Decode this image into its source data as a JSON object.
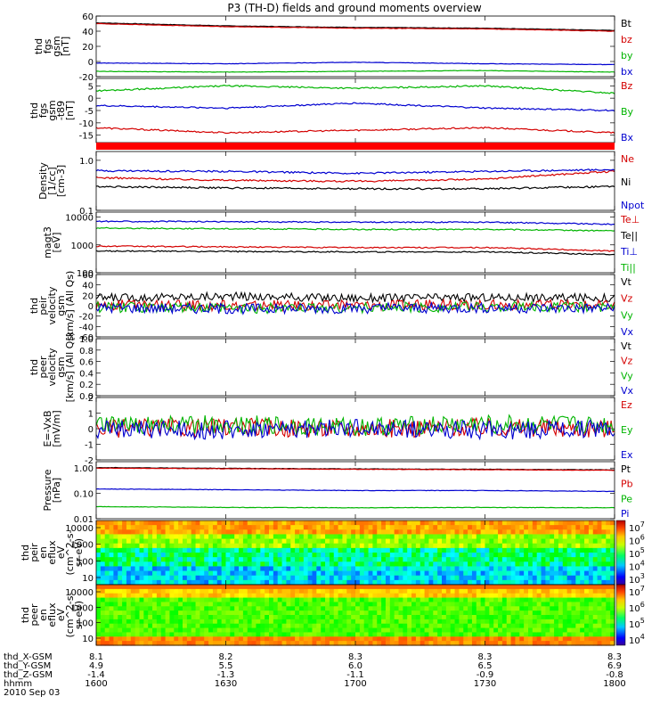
{
  "title": "P3 (TH-D) fields and ground moments overview",
  "chart_data": [
    {
      "type": "line",
      "ylabel": [
        "thd",
        "fgs",
        "gsm",
        "[nT]"
      ],
      "yticks": [
        "60",
        "40",
        "20",
        "0",
        "-20"
      ],
      "ylim": [
        -20,
        60
      ],
      "series": [
        {
          "name": "Bt",
          "color": "#000000",
          "x": [
            1600,
            1630,
            1700,
            1730,
            1800
          ],
          "y": [
            51,
            47,
            45,
            44,
            41
          ]
        },
        {
          "name": "bz",
          "color": "#d40000",
          "x": [
            1600,
            1630,
            1700,
            1730,
            1800
          ],
          "y": [
            50,
            46,
            44,
            43,
            40
          ]
        },
        {
          "name": "by",
          "color": "#00b400",
          "x": [
            1600,
            1630,
            1700,
            1730,
            1800
          ],
          "y": [
            -13,
            -14,
            -13,
            -12,
            -14
          ]
        },
        {
          "name": "bx",
          "color": "#0000d0",
          "x": [
            1600,
            1630,
            1700,
            1730,
            1800
          ],
          "y": [
            -2,
            -3,
            -1,
            -3,
            -4
          ]
        }
      ]
    },
    {
      "type": "line",
      "ylabel": [
        "thd",
        "fgs",
        "gsm",
        "-t89",
        "[nT]"
      ],
      "yticks": [
        "5",
        "0",
        "-5",
        "-10",
        "-15"
      ],
      "ylim": [
        -18,
        8
      ],
      "series": [
        {
          "name": "Bz",
          "color": "#d40000",
          "x": [
            1600,
            1630,
            1700,
            1730,
            1800
          ],
          "y": [
            -12,
            -14,
            -13,
            -12,
            -14
          ]
        },
        {
          "name": "By",
          "color": "#00b400",
          "x": [
            1600,
            1630,
            1700,
            1730,
            1800
          ],
          "y": [
            3,
            5,
            4,
            5,
            2
          ]
        },
        {
          "name": "Bx",
          "color": "#0000d0",
          "x": [
            1600,
            1630,
            1700,
            1730,
            1800
          ],
          "y": [
            -3,
            -4,
            -2,
            -4,
            -5
          ]
        }
      ]
    },
    {
      "type": "line",
      "ylabel": [
        "Density",
        "[1/cc]",
        "[cm-3]"
      ],
      "yticks": [
        "1.0",
        "0.1"
      ],
      "ylim": [
        0.1,
        1.5
      ],
      "yscale": "log",
      "series": [
        {
          "name": "Ne",
          "color": "#d40000",
          "x": [
            1600,
            1630,
            1700,
            1730,
            1800
          ],
          "y": [
            0.45,
            0.4,
            0.38,
            0.42,
            0.6
          ]
        },
        {
          "name": "Ni",
          "color": "#000000",
          "x": [
            1600,
            1630,
            1700,
            1730,
            1800
          ],
          "y": [
            0.3,
            0.28,
            0.27,
            0.27,
            0.3
          ]
        },
        {
          "name": "Npot",
          "color": "#0000d0",
          "x": [
            1600,
            1630,
            1700,
            1730,
            1800
          ],
          "y": [
            0.62,
            0.6,
            0.55,
            0.6,
            0.65
          ]
        }
      ]
    },
    {
      "type": "line",
      "ylabel": [
        "magt3",
        "[eV]"
      ],
      "yticks": [
        "10000",
        "1000",
        "100"
      ],
      "ylim": [
        100,
        15000
      ],
      "yscale": "log",
      "series": [
        {
          "name": "Te⊥",
          "color": "#d40000",
          "x": [
            1600,
            1630,
            1700,
            1730,
            1800
          ],
          "y": [
            900,
            850,
            800,
            800,
            600
          ]
        },
        {
          "name": "Te||",
          "color": "#000000",
          "x": [
            1600,
            1630,
            1700,
            1730,
            1800
          ],
          "y": [
            600,
            580,
            560,
            560,
            450
          ]
        },
        {
          "name": "Ti⊥",
          "color": "#0000d0",
          "x": [
            1600,
            1630,
            1700,
            1730,
            1800
          ],
          "y": [
            7000,
            6800,
            6500,
            6500,
            5500
          ]
        },
        {
          "name": "Ti||",
          "color": "#00b400",
          "x": [
            1600,
            1630,
            1700,
            1730,
            1800
          ],
          "y": [
            4000,
            3800,
            3600,
            3600,
            3200
          ]
        }
      ]
    },
    {
      "type": "line",
      "ylabel": [
        "thd",
        "peir",
        "velocity",
        "gsm",
        "[km/s] (All Qs)"
      ],
      "yticks": [
        "60",
        "40",
        "20",
        "0",
        "-20",
        "-40",
        "-60"
      ],
      "ylim": [
        -60,
        60
      ],
      "series": [
        {
          "name": "Vt",
          "color": "#000000",
          "x": [
            1600,
            1630,
            1700,
            1730,
            1800
          ],
          "y": [
            15,
            18,
            15,
            16,
            15
          ]
        },
        {
          "name": "Vz",
          "color": "#d40000",
          "x": [
            1600,
            1630,
            1700,
            1730,
            1800
          ],
          "y": [
            2,
            0,
            1,
            2,
            1
          ]
        },
        {
          "name": "Vy",
          "color": "#00b400",
          "x": [
            1600,
            1630,
            1700,
            1730,
            1800
          ],
          "y": [
            -3,
            -5,
            -4,
            -2,
            -3
          ]
        },
        {
          "name": "Vx",
          "color": "#0000d0",
          "x": [
            1600,
            1630,
            1700,
            1730,
            1800
          ],
          "y": [
            -4,
            -6,
            -5,
            -4,
            -5
          ]
        }
      ]
    },
    {
      "type": "line",
      "ylabel": [
        "thd",
        "peer",
        "velocity",
        "gsm",
        "[km/s] (All Qs)"
      ],
      "yticks": [
        "1.0",
        "0.8",
        "0.6",
        "0.4",
        "0.2",
        "0.0"
      ],
      "ylim": [
        0,
        1
      ],
      "series": [
        {
          "name": "Vt",
          "color": "#000000",
          "x": [],
          "y": []
        },
        {
          "name": "Vz",
          "color": "#d40000",
          "x": [],
          "y": []
        },
        {
          "name": "Vy",
          "color": "#00b400",
          "x": [],
          "y": []
        },
        {
          "name": "Vx",
          "color": "#0000d0",
          "x": [],
          "y": []
        }
      ]
    },
    {
      "type": "line",
      "ylabel": [
        "E=-VxB",
        "[mV/m]"
      ],
      "yticks": [
        "2",
        "1",
        "0",
        "-1",
        "-2"
      ],
      "ylim": [
        -2,
        2
      ],
      "series": [
        {
          "name": "Ez",
          "color": "#d40000",
          "x": [
            1600,
            1630,
            1700,
            1730,
            1800
          ],
          "y": [
            0,
            0.1,
            0,
            0.1,
            0
          ]
        },
        {
          "name": "Ey",
          "color": "#00b400",
          "x": [
            1600,
            1630,
            1700,
            1730,
            1800
          ],
          "y": [
            0.2,
            0.3,
            0.1,
            0.3,
            0.2
          ]
        },
        {
          "name": "Ex",
          "color": "#0000d0",
          "x": [
            1600,
            1630,
            1700,
            1730,
            1800
          ],
          "y": [
            0,
            -0.1,
            0,
            -0.1,
            0
          ]
        }
      ]
    },
    {
      "type": "line",
      "ylabel": [
        "Pressure",
        "[nPa]"
      ],
      "yticks": [
        "1.00",
        "0.10",
        "0.01"
      ],
      "ylim": [
        0.01,
        1.8
      ],
      "yscale": "log",
      "series": [
        {
          "name": "Pt",
          "color": "#000000",
          "x": [
            1600,
            1630,
            1700,
            1730,
            1800
          ],
          "y": [
            1.05,
            0.98,
            0.93,
            0.9,
            0.85
          ]
        },
        {
          "name": "Pb",
          "color": "#d40000",
          "x": [
            1600,
            1630,
            1700,
            1730,
            1800
          ],
          "y": [
            1.0,
            0.95,
            0.9,
            0.87,
            0.82
          ]
        },
        {
          "name": "Pe",
          "color": "#00b400",
          "x": [
            1600,
            1630,
            1700,
            1730,
            1800
          ],
          "y": [
            0.03,
            0.028,
            0.027,
            0.028,
            0.027
          ]
        },
        {
          "name": "Pi",
          "color": "#0000d0",
          "x": [
            1600,
            1630,
            1700,
            1730,
            1800
          ],
          "y": [
            0.15,
            0.14,
            0.13,
            0.13,
            0.12
          ]
        }
      ]
    },
    {
      "type": "heatmap",
      "ylabel": [
        "thd",
        "peir",
        "en",
        "eflux",
        "eV",
        "(cm^2-s-",
        "sr-eV)"
      ],
      "yticks": [
        "10000",
        "1000",
        "100",
        "10"
      ],
      "yscale": "log",
      "colorbar_ticks": [
        "10^7",
        "10^6",
        "10^5",
        "10^4",
        "10^3"
      ]
    },
    {
      "type": "heatmap",
      "ylabel": [
        "thd",
        "peer",
        "en",
        "eflux",
        "eV",
        "(cm^2-s-",
        "sr-eV)"
      ],
      "yticks": [
        "10000",
        "1000",
        "100",
        "10"
      ],
      "yscale": "log",
      "colorbar_ticks": [
        "10^7",
        "10^6",
        "10^5",
        "10^4"
      ]
    }
  ],
  "x_axis": {
    "ticks": [
      "1600",
      "1630",
      "1700",
      "1730",
      "1800"
    ],
    "rows": [
      {
        "label": "thd_X-GSM",
        "values": [
          "8.1",
          "8.2",
          "8.3",
          "8.3",
          "8.3"
        ]
      },
      {
        "label": "thd_Y-GSM",
        "values": [
          "4.9",
          "5.5",
          "6.0",
          "6.5",
          "6.9"
        ]
      },
      {
        "label": "thd_Z-GSM",
        "values": [
          "-1.4",
          "-1.3",
          "-1.1",
          "-0.9",
          "-0.8"
        ]
      },
      {
        "label": "hhmm",
        "values": [
          "1600",
          "1630",
          "1700",
          "1730",
          "1800"
        ]
      }
    ],
    "date": "2010 Sep 03"
  }
}
